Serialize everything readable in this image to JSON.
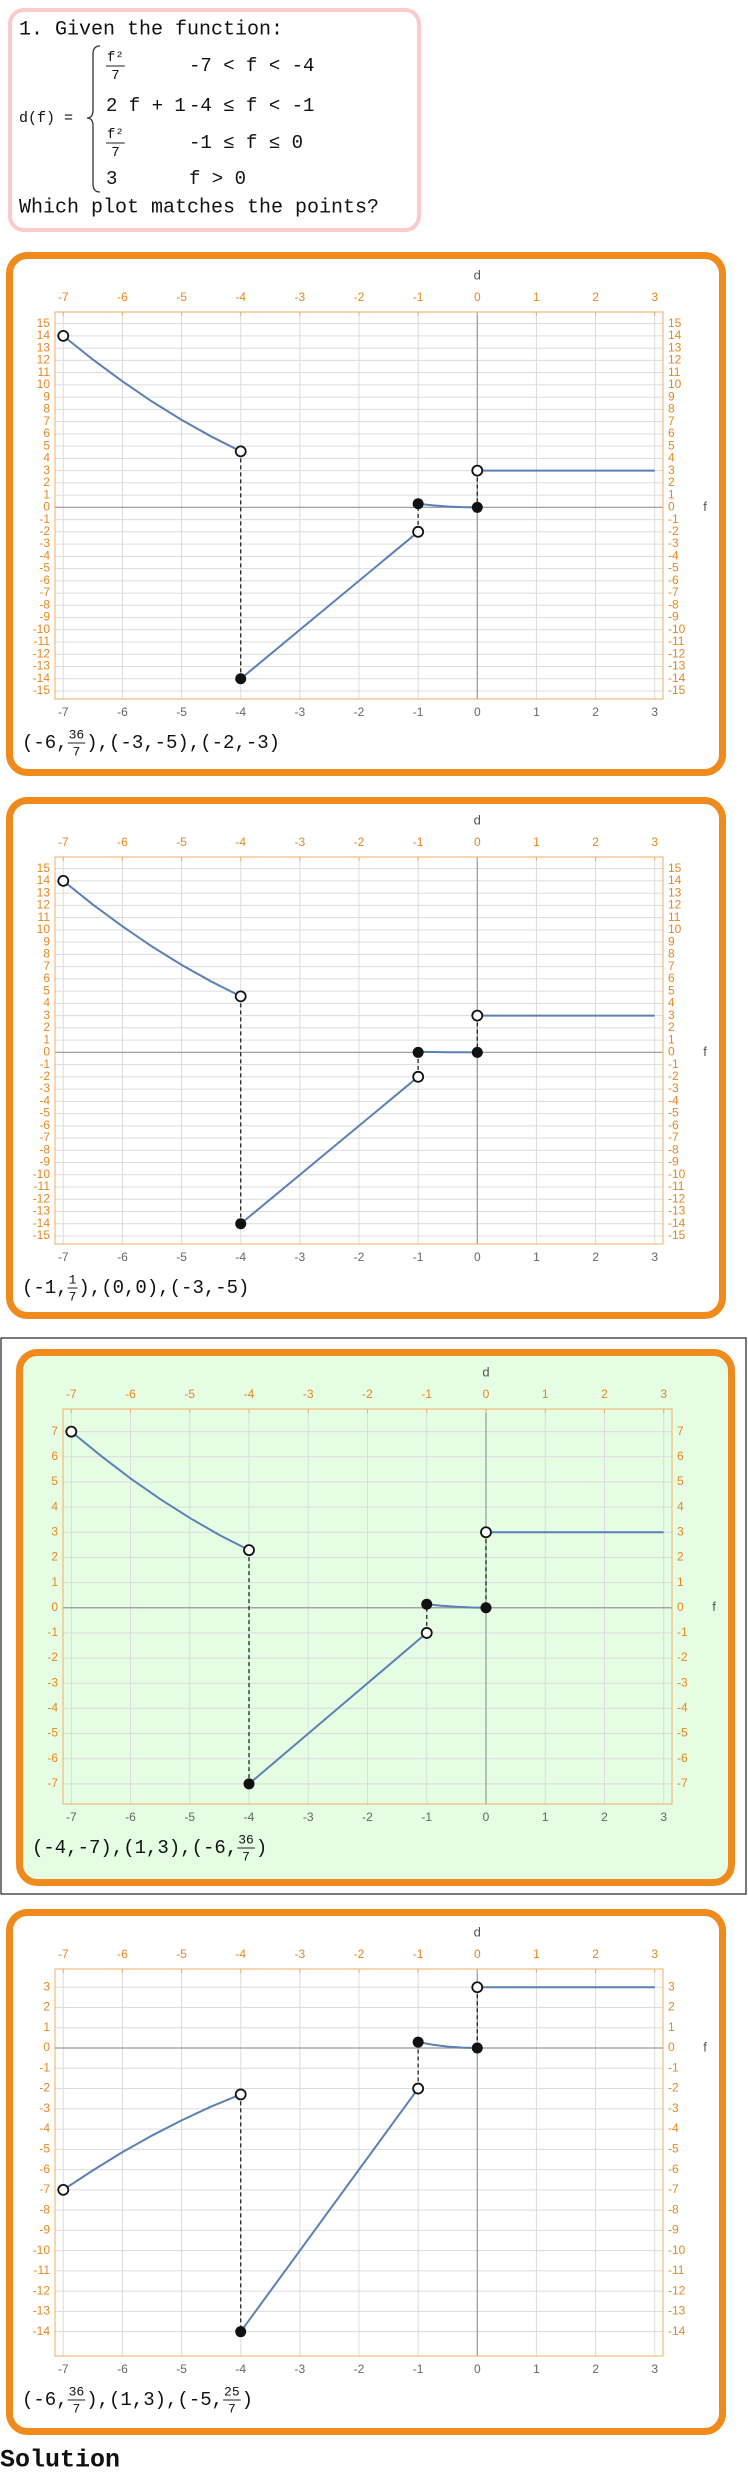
{
  "question": {
    "title": "1. Given the function:",
    "lhs": "d(f) =",
    "pieces": [
      {
        "expr": {
          "num": "f²",
          "den": "7"
        },
        "cond": "-7 < f < -4"
      },
      {
        "expr": "2 f + 1",
        "cond": "-4 ≤ f < -1"
      },
      {
        "expr": {
          "num": "f²",
          "den": "7"
        },
        "cond": "-1 ≤ f ≤ 0"
      },
      {
        "expr": "3",
        "cond": "f > 0"
      }
    ],
    "prompt": "Which plot matches the points?"
  },
  "chart_data": [
    {
      "type": "line",
      "x_label": "f",
      "y_label": "d",
      "xlim": [
        -7.14,
        3.14
      ],
      "xticks": [
        -7,
        -6,
        -5,
        -4,
        -3,
        -2,
        -1,
        0,
        1,
        2,
        3
      ],
      "ylim": [
        -15.65,
        15.95
      ],
      "yticks": [
        -15,
        -14,
        -13,
        -12,
        -11,
        -10,
        -9,
        -8,
        -7,
        -6,
        -5,
        -4,
        -3,
        -2,
        -1,
        0,
        1,
        2,
        3,
        4,
        5,
        6,
        7,
        8,
        9,
        10,
        11,
        12,
        13,
        14,
        15
      ],
      "grid": true,
      "color": "#5b80b6",
      "series": [
        {
          "x": [
            -7,
            -6.5,
            -6,
            -5.5,
            -5,
            -4.5,
            -4
          ],
          "values": [
            14,
            12.07,
            10.29,
            8.64,
            7.14,
            5.79,
            4.57
          ]
        },
        {
          "x": [
            -4,
            -1
          ],
          "values": [
            -14,
            -2
          ]
        },
        {
          "x": [
            -1,
            -0.75,
            -0.5,
            -0.25,
            0
          ],
          "values": [
            0.29,
            0.16,
            0.07,
            0.02,
            0
          ]
        },
        {
          "x": [
            0,
            3
          ],
          "values": [
            3,
            3
          ]
        }
      ],
      "open_points": {
        "x": [
          -7,
          -4,
          -1,
          0
        ],
        "values": [
          14,
          4.57,
          -2,
          3
        ]
      },
      "closed_points": {
        "x": [
          -4,
          -1,
          0
        ],
        "values": [
          -14,
          0.29,
          0
        ]
      },
      "caption": [
        "(-6,",
        {
          "num": "36",
          "den": "7"
        },
        "),(-3,-5),(-2,-3)"
      ]
    },
    {
      "type": "line",
      "x_label": "f",
      "y_label": "d",
      "xlim": [
        -7.14,
        3.14
      ],
      "xticks": [
        -7,
        -6,
        -5,
        -4,
        -3,
        -2,
        -1,
        0,
        1,
        2,
        3
      ],
      "ylim": [
        -15.65,
        15.95
      ],
      "yticks": [
        -15,
        -14,
        -13,
        -12,
        -11,
        -10,
        -9,
        -8,
        -7,
        -6,
        -5,
        -4,
        -3,
        -2,
        -1,
        0,
        1,
        2,
        3,
        4,
        5,
        6,
        7,
        8,
        9,
        10,
        11,
        12,
        13,
        14,
        15
      ],
      "grid": true,
      "color": "#5b80b6",
      "series": [
        {
          "x": [
            -7,
            -6.5,
            -6,
            -5.5,
            -5,
            -4.5,
            -4
          ],
          "values": [
            14,
            12.07,
            10.29,
            8.64,
            7.14,
            5.79,
            4.57
          ]
        },
        {
          "x": [
            -4,
            -1
          ],
          "values": [
            -14,
            -2
          ]
        },
        {
          "x": [
            -1,
            -0.75,
            -0.5,
            -0.25,
            0
          ],
          "values": [
            0.05,
            0.03,
            0.01,
            0.005,
            0
          ]
        },
        {
          "x": [
            0,
            3
          ],
          "values": [
            3,
            3
          ]
        }
      ],
      "open_points": {
        "x": [
          -7,
          -4,
          -1,
          0
        ],
        "values": [
          14,
          4.57,
          -2,
          3
        ]
      },
      "closed_points": {
        "x": [
          -4,
          -1,
          0
        ],
        "values": [
          -14,
          0,
          0
        ]
      },
      "caption": [
        "(-1,",
        {
          "num": "1",
          "den": "7"
        },
        "),(0,0),(-3,-5)"
      ]
    },
    {
      "type": "line",
      "x_label": "f",
      "y_label": "d",
      "xlim": [
        -7.14,
        3.14
      ],
      "xticks": [
        -7,
        -6,
        -5,
        -4,
        -3,
        -2,
        -1,
        0,
        1,
        2,
        3
      ],
      "ylim": [
        -7.8,
        7.9
      ],
      "yticks": [
        -7,
        -6,
        -5,
        -4,
        -3,
        -2,
        -1,
        0,
        1,
        2,
        3,
        4,
        5,
        6,
        7
      ],
      "grid": true,
      "color": "#5b80b6",
      "series": [
        {
          "x": [
            -7,
            -6.5,
            -6,
            -5.5,
            -5,
            -4.5,
            -4
          ],
          "values": [
            7,
            6.04,
            5.14,
            4.32,
            3.57,
            2.89,
            2.29
          ]
        },
        {
          "x": [
            -4,
            -1
          ],
          "values": [
            -7,
            -1
          ]
        },
        {
          "x": [
            -1,
            -0.75,
            -0.5,
            -0.25,
            0
          ],
          "values": [
            0.14,
            0.08,
            0.04,
            0.01,
            0
          ]
        },
        {
          "x": [
            0,
            3
          ],
          "values": [
            3,
            3
          ]
        }
      ],
      "open_points": {
        "x": [
          -7,
          -4,
          -1,
          0
        ],
        "values": [
          7,
          2.29,
          -1,
          3
        ]
      },
      "closed_points": {
        "x": [
          -4,
          -1,
          0
        ],
        "values": [
          -7,
          0.14,
          0
        ]
      },
      "caption": [
        "(-4,-7),(1,3),(-6,",
        {
          "num": "36",
          "den": "7"
        },
        ")"
      ]
    },
    {
      "type": "line",
      "x_label": "f",
      "y_label": "d",
      "xlim": [
        -7.14,
        3.14
      ],
      "xticks": [
        -7,
        -6,
        -5,
        -4,
        -3,
        -2,
        -1,
        0,
        1,
        2,
        3
      ],
      "ylim": [
        -15.2,
        3.9
      ],
      "yticks": [
        -14,
        -13,
        -12,
        -11,
        -10,
        -9,
        -8,
        -7,
        -6,
        -5,
        -4,
        -3,
        -2,
        -1,
        0,
        1,
        2,
        3
      ],
      "grid": true,
      "color": "#5b80b6",
      "series": [
        {
          "x": [
            -7,
            -6.5,
            -6,
            -5.5,
            -5,
            -4.5,
            -4
          ],
          "values": [
            -7,
            -6.04,
            -5.14,
            -4.32,
            -3.57,
            -2.89,
            -2.29
          ]
        },
        {
          "x": [
            -4,
            -1
          ],
          "values": [
            -14,
            -2
          ]
        },
        {
          "x": [
            -1,
            -0.75,
            -0.5,
            -0.25,
            0
          ],
          "values": [
            0.29,
            0.16,
            0.07,
            0.02,
            0
          ]
        },
        {
          "x": [
            0,
            3
          ],
          "values": [
            3,
            3
          ]
        }
      ],
      "open_points": {
        "x": [
          -7,
          -4,
          -1,
          0
        ],
        "values": [
          -7,
          -2.29,
          -2,
          3
        ]
      },
      "closed_points": {
        "x": [
          -4,
          -1,
          0
        ],
        "values": [
          -14,
          0.29,
          0
        ]
      },
      "caption": [
        "(-6,",
        {
          "num": "36",
          "den": "7"
        },
        "),(1,3),(-5,",
        {
          "num": "25",
          "den": "7"
        },
        ")"
      ]
    }
  ],
  "solution": "Solution"
}
